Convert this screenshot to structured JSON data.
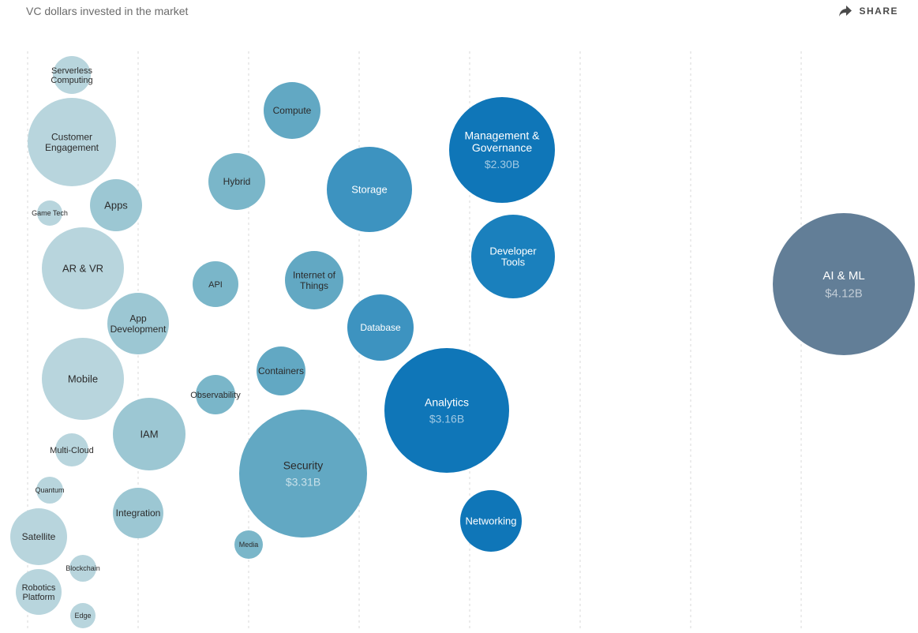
{
  "header": {
    "subtitle": "VC dollars invested in the market",
    "share_label": "SHARE",
    "share_icon": "share-arrow-icon"
  },
  "colors": {
    "lightest": "#b8d5dd",
    "light": "#9cc7d3",
    "mid_light": "#7ab6c9",
    "mid": "#62a8c3",
    "mid_dark": "#3d93c0",
    "dark": "#1a80bd",
    "darkest": "#0f76b8",
    "ai": "#627e97",
    "gridline": "#d9d9d9"
  },
  "chart_data": {
    "type": "bubble",
    "title": "",
    "xlabel": "",
    "ylabel": "",
    "value_unit": "USD",
    "bubbles": [
      {
        "name": "Serverless Computing",
        "lines": [
          "Serverless",
          "Computing"
        ],
        "value": null,
        "color": "lightest"
      },
      {
        "name": "Customer Engagement",
        "lines": [
          "Customer",
          "Engagement"
        ],
        "value": null,
        "color": "lightest"
      },
      {
        "name": "Game Tech",
        "lines": [
          "Game Tech"
        ],
        "value": null,
        "color": "lightest"
      },
      {
        "name": "Apps",
        "lines": [
          "Apps"
        ],
        "value": null,
        "color": "light"
      },
      {
        "name": "AR & VR",
        "lines": [
          "AR & VR"
        ],
        "value": null,
        "color": "lightest"
      },
      {
        "name": "App Development",
        "lines": [
          "App",
          "Development"
        ],
        "value": null,
        "color": "light"
      },
      {
        "name": "Mobile",
        "lines": [
          "Mobile"
        ],
        "value": null,
        "color": "lightest"
      },
      {
        "name": "IAM",
        "lines": [
          "IAM"
        ],
        "value": null,
        "color": "light"
      },
      {
        "name": "Multi-Cloud",
        "lines": [
          "Multi-Cloud"
        ],
        "value": null,
        "color": "lightest"
      },
      {
        "name": "Quantum",
        "lines": [
          "Quantum"
        ],
        "value": null,
        "color": "lightest"
      },
      {
        "name": "Integration",
        "lines": [
          "Integration"
        ],
        "value": null,
        "color": "light"
      },
      {
        "name": "Satellite",
        "lines": [
          "Satellite"
        ],
        "value": null,
        "color": "lightest"
      },
      {
        "name": "Blockchain",
        "lines": [
          "Blockchain"
        ],
        "value": null,
        "color": "lightest"
      },
      {
        "name": "Robotics Platform",
        "lines": [
          "Robotics",
          "Platform"
        ],
        "value": null,
        "color": "lightest"
      },
      {
        "name": "Edge",
        "lines": [
          "Edge"
        ],
        "value": null,
        "color": "lightest"
      },
      {
        "name": "Hybrid",
        "lines": [
          "Hybrid"
        ],
        "value": null,
        "color": "mid_light"
      },
      {
        "name": "API",
        "lines": [
          "API"
        ],
        "value": null,
        "color": "mid_light"
      },
      {
        "name": "Observability",
        "lines": [
          "Observability"
        ],
        "value": null,
        "color": "mid_light"
      },
      {
        "name": "Media",
        "lines": [
          "Media"
        ],
        "value": null,
        "color": "mid_light"
      },
      {
        "name": "Compute",
        "lines": [
          "Compute"
        ],
        "value": null,
        "color": "mid"
      },
      {
        "name": "Storage",
        "lines": [
          "Storage"
        ],
        "value": null,
        "color": "mid_dark"
      },
      {
        "name": "Internet of Things",
        "lines": [
          "Internet of",
          "Things"
        ],
        "value": null,
        "color": "mid"
      },
      {
        "name": "Database",
        "lines": [
          "Database"
        ],
        "value": null,
        "color": "mid_dark"
      },
      {
        "name": "Containers",
        "lines": [
          "Containers"
        ],
        "value": null,
        "color": "mid"
      },
      {
        "name": "Security",
        "lines": [
          "Security"
        ],
        "value": "$3.31B",
        "color": "mid"
      },
      {
        "name": "Management & Governance",
        "lines": [
          "Management &",
          "Governance"
        ],
        "value": "$2.30B",
        "color": "darkest"
      },
      {
        "name": "Developer Tools",
        "lines": [
          "Developer",
          "Tools"
        ],
        "value": null,
        "color": "dark"
      },
      {
        "name": "Analytics",
        "lines": [
          "Analytics"
        ],
        "value": "$3.16B",
        "color": "darkest"
      },
      {
        "name": "Networking",
        "lines": [
          "Networking"
        ],
        "value": null,
        "color": "darkest"
      },
      {
        "name": "AI & ML",
        "lines": [
          "AI & ML"
        ],
        "value": "$4.12B",
        "color": "ai"
      }
    ]
  }
}
